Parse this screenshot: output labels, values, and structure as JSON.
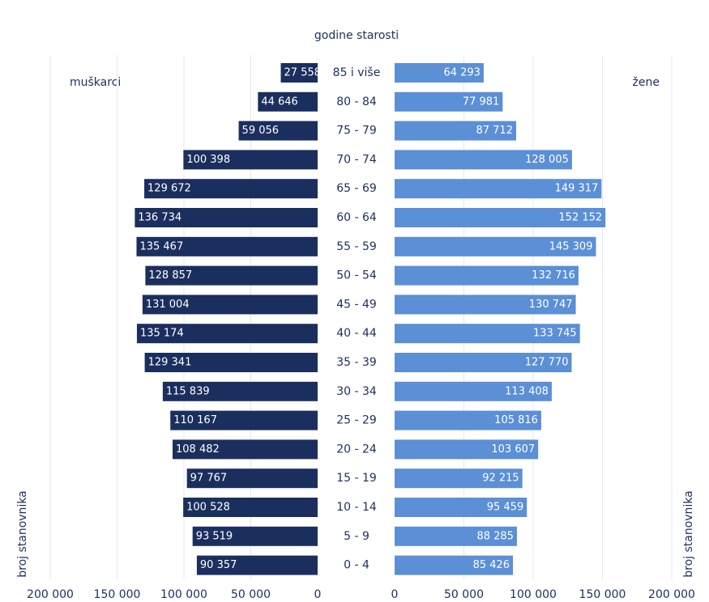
{
  "chart_data": {
    "type": "pyramid",
    "y_label": "godine starosti",
    "x_label": "broj stanovnika",
    "categories": [
      "85 i više",
      "80 - 84",
      "75 - 79",
      "70 - 74",
      "65 - 69",
      "60 - 64",
      "55 - 59",
      "50 - 54",
      "45 - 49",
      "40 - 44",
      "35 - 39",
      "30 - 34",
      "25 - 29",
      "20 - 24",
      "15 - 19",
      "10 - 14",
      "5 - 9",
      "0 - 4"
    ],
    "series": [
      {
        "name": "muškarci",
        "color": "#1b2f5e",
        "values": [
          27558,
          44646,
          59056,
          100398,
          129672,
          136734,
          135467,
          128857,
          131004,
          135174,
          129341,
          115839,
          110167,
          108482,
          97767,
          100528,
          93519,
          90357
        ],
        "value_labels": [
          "27 558",
          "44 646",
          "59 056",
          "100 398",
          "129 672",
          "136 734",
          "135 467",
          "128 857",
          "131 004",
          "135 174",
          "129 341",
          "115 839",
          "110 167",
          "108 482",
          "97 767",
          "100 528",
          "93 519",
          "90 357"
        ]
      },
      {
        "name": "žene",
        "color": "#5b8fd6",
        "values": [
          64293,
          77981,
          87712,
          128005,
          149317,
          152152,
          145309,
          132716,
          130747,
          133745,
          127770,
          113408,
          105816,
          103607,
          92215,
          95459,
          88285,
          85426
        ],
        "value_labels": [
          "64 293",
          "77 981",
          "87 712",
          "128 005",
          "149 317",
          "152 152",
          "145 309",
          "132 716",
          "130 747",
          "133 745",
          "127 770",
          "113 408",
          "105 816",
          "103 607",
          "92 215",
          "95 459",
          "88 285",
          "85 426"
        ]
      }
    ],
    "xlim": [
      0,
      200000
    ],
    "xticks": [
      0,
      {
        "value": 50000,
        "label": "50 000"
      },
      {
        "value": 100000,
        "label": "100 000"
      },
      {
        "value": 150000,
        "label": "150 000"
      },
      {
        "value": 200000,
        "label": "200 000"
      }
    ],
    "grid": true
  }
}
